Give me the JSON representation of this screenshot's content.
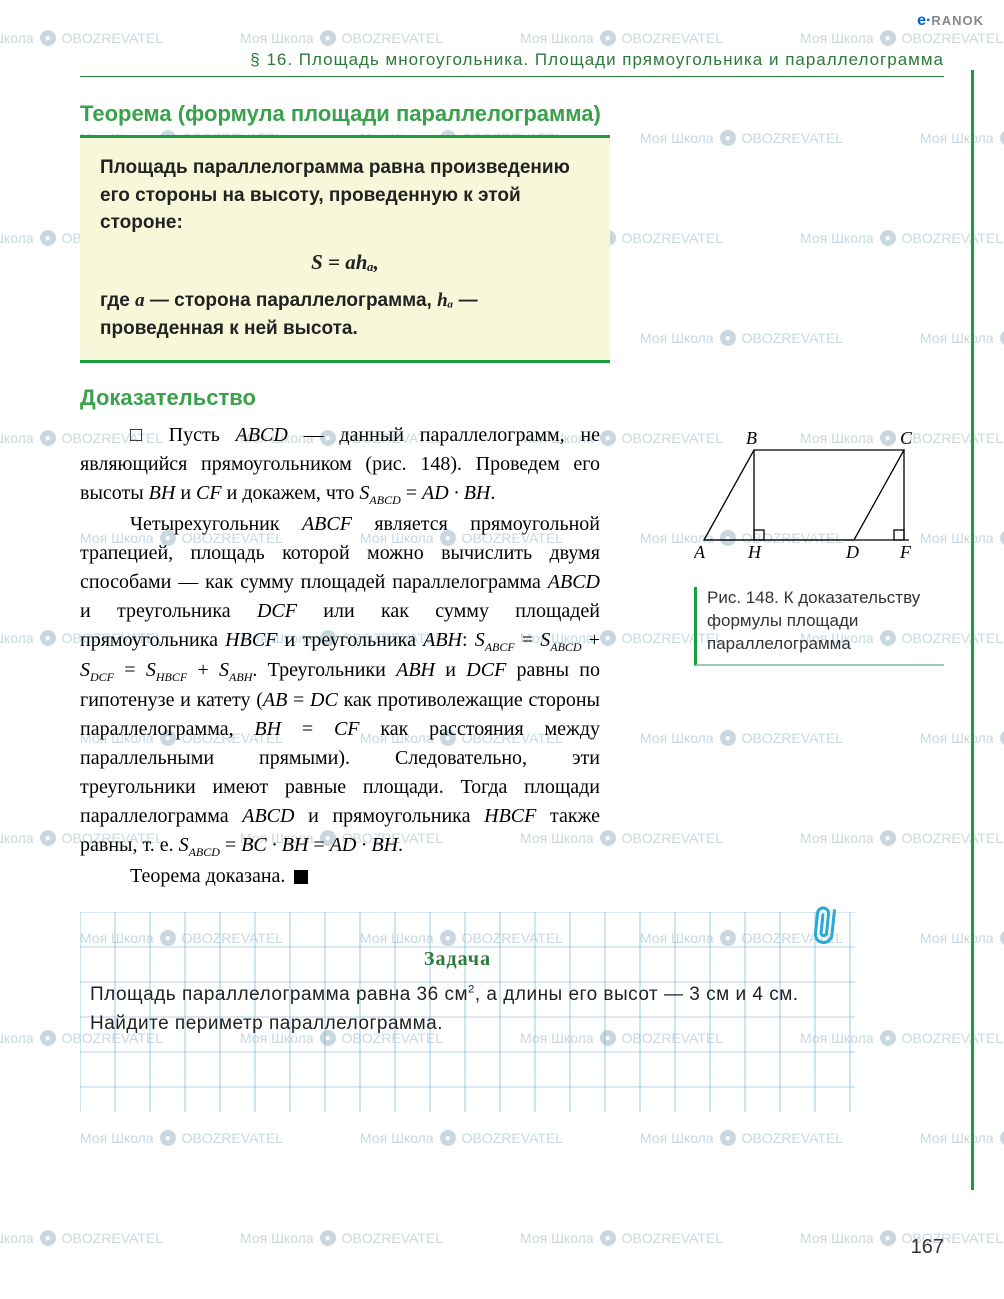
{
  "watermark": {
    "text1": "Моя Школа",
    "text2": "OBOZREVATEL"
  },
  "logo": {
    "e": "e·",
    "rest": "RANOK"
  },
  "header": "§ 16. Площадь многоугольника. Площади прямоугольника и параллелограмма",
  "theorem": {
    "title": "Теорема (формула площади параллелограмма)",
    "p1_a": "Площадь параллелограмма равна произведению его стороны на высоту, проведенную к этой стороне:",
    "formula": "S = ahₐ,",
    "p2_a": "где ",
    "p2_var1": "a",
    "p2_b": " — сторона параллелограмма, ",
    "p2_var2": "hₐ",
    "p2_c": " — проведенная к ней высота."
  },
  "proof": {
    "title": "Доказательство",
    "p1": "□ Пусть <span class=\"mi\">ABCD</span> — данный параллелограмм, не являющийся прямоугольником (рис. 148). Проведем его высоты <span class=\"mi\">BH</span> и <span class=\"mi\">CF</span> и докажем, что <span class=\"mi\">S<span class=\"ssub\">ABCD</span></span> = <span class=\"mi\">AD · BH</span>.",
    "p2": "Четырехугольник <span class=\"mi\">ABCF</span> является прямоугольной трапецией, площадь которой можно вычислить двумя способами — как сумму площадей параллелограмма <span class=\"mi\">ABCD</span> и треугольника <span class=\"mi\">DCF</span> или как сумму площадей прямоугольника <span class=\"mi\">HBCF</span> и треугольника <span class=\"mi\">ABH</span>: <span class=\"mi\">S<span class=\"ssub\">ABCF</span></span> = <span class=\"mi\">S<span class=\"ssub\">ABCD</span></span> + <span class=\"mi\">S<span class=\"ssub\">DCF</span></span> = <span class=\"mi\">S<span class=\"ssub\">HBCF</span></span> + <span class=\"mi\">S<span class=\"ssub\">ABH</span></span>. Треугольники <span class=\"mi\">ABH</span> и <span class=\"mi\">DCF</span> равны по гипотенузе и катету (<span class=\"mi\">AB</span> = <span class=\"mi\">DC</span> как противолежащие стороны параллелограмма, <span class=\"mi\">BH</span> = <span class=\"mi\">CF</span> как расстояния между параллельными прямыми). Следовательно, эти треугольники имеют равные площади. Тогда площади параллелограмма <span class=\"mi\">ABCD</span> и прямоугольника <span class=\"mi\">HBCF</span> также равны, т. е. <span class=\"mi\">S<span class=\"ssub\">ABCD</span></span> = <span class=\"mi\">BC · BH</span> = <span class=\"mi\">AD · BH</span>.",
    "p3": "Теорема доказана. "
  },
  "figure": {
    "labels": {
      "A": "A",
      "B": "B",
      "C": "C",
      "D": "D",
      "H": "H",
      "F": "F"
    },
    "caption": "Рис. 148. К доказательству формулы площади параллелограмма",
    "line_color": "#000000",
    "label_fontsize": 18
  },
  "task": {
    "title": "Задача",
    "text": "Площадь параллелограмма равна 36 см², а длины его высот — 3 см и 4 см. Найдите периметр параллелограмма.",
    "grid_color": "#5aa8d8",
    "grid_cell": 35
  },
  "page_number": "167"
}
